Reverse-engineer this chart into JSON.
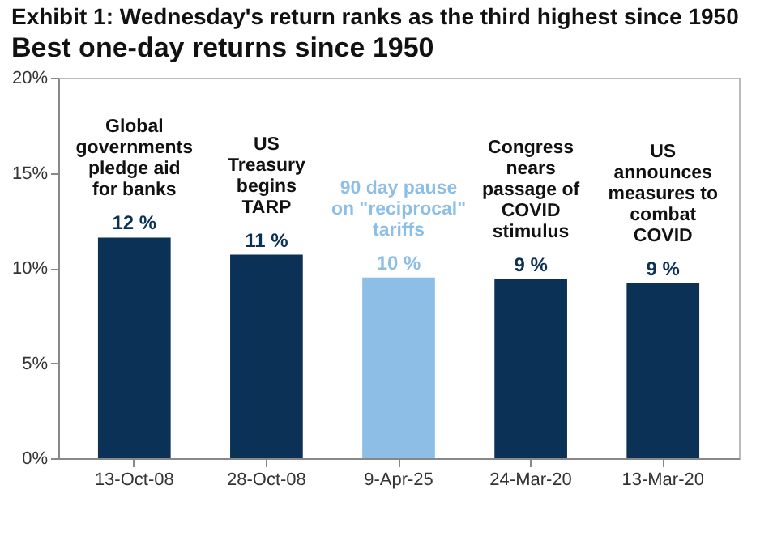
{
  "chart_data": {
    "type": "bar",
    "title": "Exhibit 1: Wednesday's return ranks as the third highest since 1950",
    "subtitle": "Best one-day returns since 1950",
    "categories": [
      "13-Oct-08",
      "28-Oct-08",
      "9-Apr-25",
      "24-Mar-20",
      "13-Mar-20"
    ],
    "values": [
      11.6,
      10.7,
      9.5,
      9.4,
      9.2
    ],
    "colors": [
      "#0b3157",
      "#0b3157",
      "#8dbfe6",
      "#0b3157",
      "#0b3157"
    ],
    "value_labels": [
      "12 %",
      "11 %",
      "10 %",
      "9 %",
      "9 %"
    ],
    "ylim": [
      0,
      20
    ],
    "yticks": [
      {
        "value": 0,
        "label": "0%"
      },
      {
        "value": 5,
        "label": "5%"
      },
      {
        "value": 10,
        "label": "10%"
      },
      {
        "value": 15,
        "label": "15%"
      },
      {
        "value": 20,
        "label": "20%"
      }
    ],
    "annotations": [
      {
        "text": "Global\ngovernments\npledge aid\nfor banks",
        "x": "13-Oct-08",
        "y": 11.6
      },
      {
        "text": "US\nTreasury\nbegins\nTARP",
        "x": "28-Oct-08",
        "y": 10.7
      },
      {
        "text": "90 day pause\non \"reciprocal\"\ntariffs",
        "x": "9-Apr-25",
        "y": 9.5
      },
      {
        "text": "Congress\nnears\npassage of\nCOVID\nstimulus",
        "x": "24-Mar-20",
        "y": 9.4
      },
      {
        "text": "US\nannounces\nmeasures to\ncombat\nCOVID",
        "x": "13-Mar-20",
        "y": 9.2
      }
    ],
    "grid": false
  }
}
